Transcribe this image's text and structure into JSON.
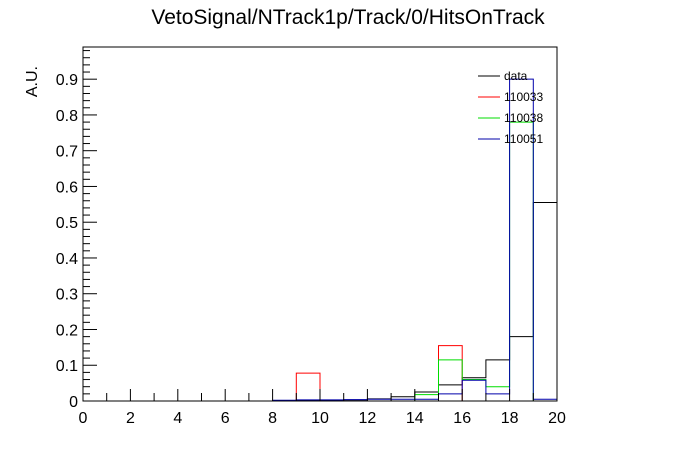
{
  "chart_data": {
    "type": "histogram",
    "title": "VetoSignal/NTrack1p/Track/0/HitsOnTrack",
    "xlabel": "",
    "ylabel": "A.U.",
    "xlim": [
      0,
      20
    ],
    "ylim": [
      0,
      0.99
    ],
    "bin_edges": [
      0,
      1,
      2,
      3,
      4,
      5,
      6,
      7,
      8,
      9,
      10,
      11,
      12,
      13,
      14,
      15,
      16,
      17,
      18,
      19,
      20
    ],
    "x_ticks": [
      0,
      2,
      4,
      6,
      8,
      10,
      12,
      14,
      16,
      18,
      20
    ],
    "y_ticks": [
      0,
      0.1,
      0.2,
      0.3,
      0.4,
      0.5,
      0.6,
      0.7,
      0.8,
      0.9
    ],
    "x_tick_labels": [
      "0",
      "2",
      "4",
      "6",
      "8",
      "10",
      "12",
      "14",
      "16",
      "18",
      "20"
    ],
    "y_tick_labels": [
      "0",
      "0.1",
      "0.2",
      "0.3",
      "0.4",
      "0.5",
      "0.6",
      "0.7",
      "0.8",
      "0.9"
    ],
    "legend_position": "top-right",
    "grid": false,
    "series": [
      {
        "name": "data",
        "color": "#000000",
        "values": [
          0,
          0,
          0,
          0,
          0,
          0,
          0,
          0,
          0.001,
          0.002,
          0.002,
          0.003,
          0.006,
          0.012,
          0.025,
          0.045,
          0.065,
          0.115,
          0.18,
          0.555
        ]
      },
      {
        "name": "110033",
        "color": "#ff0000",
        "values": [
          0,
          0,
          0,
          0,
          0,
          0,
          0,
          0,
          0,
          0.078,
          0,
          0,
          0,
          0,
          0,
          0.155,
          0,
          0,
          0,
          0
        ]
      },
      {
        "name": "110038",
        "color": "#00dd00",
        "values": [
          0,
          0,
          0,
          0,
          0,
          0,
          0,
          0,
          0,
          0,
          0,
          0,
          0,
          0,
          0.018,
          0.115,
          0.06,
          0.04,
          0.78,
          0
        ]
      },
      {
        "name": "110051",
        "color": "#0000aa",
        "values": [
          0,
          0,
          0,
          0,
          0,
          0,
          0,
          0,
          0.002,
          0.003,
          0.003,
          0.004,
          0.005,
          0.005,
          0.005,
          0.02,
          0.058,
          0.02,
          0.9,
          0.005
        ]
      }
    ]
  }
}
